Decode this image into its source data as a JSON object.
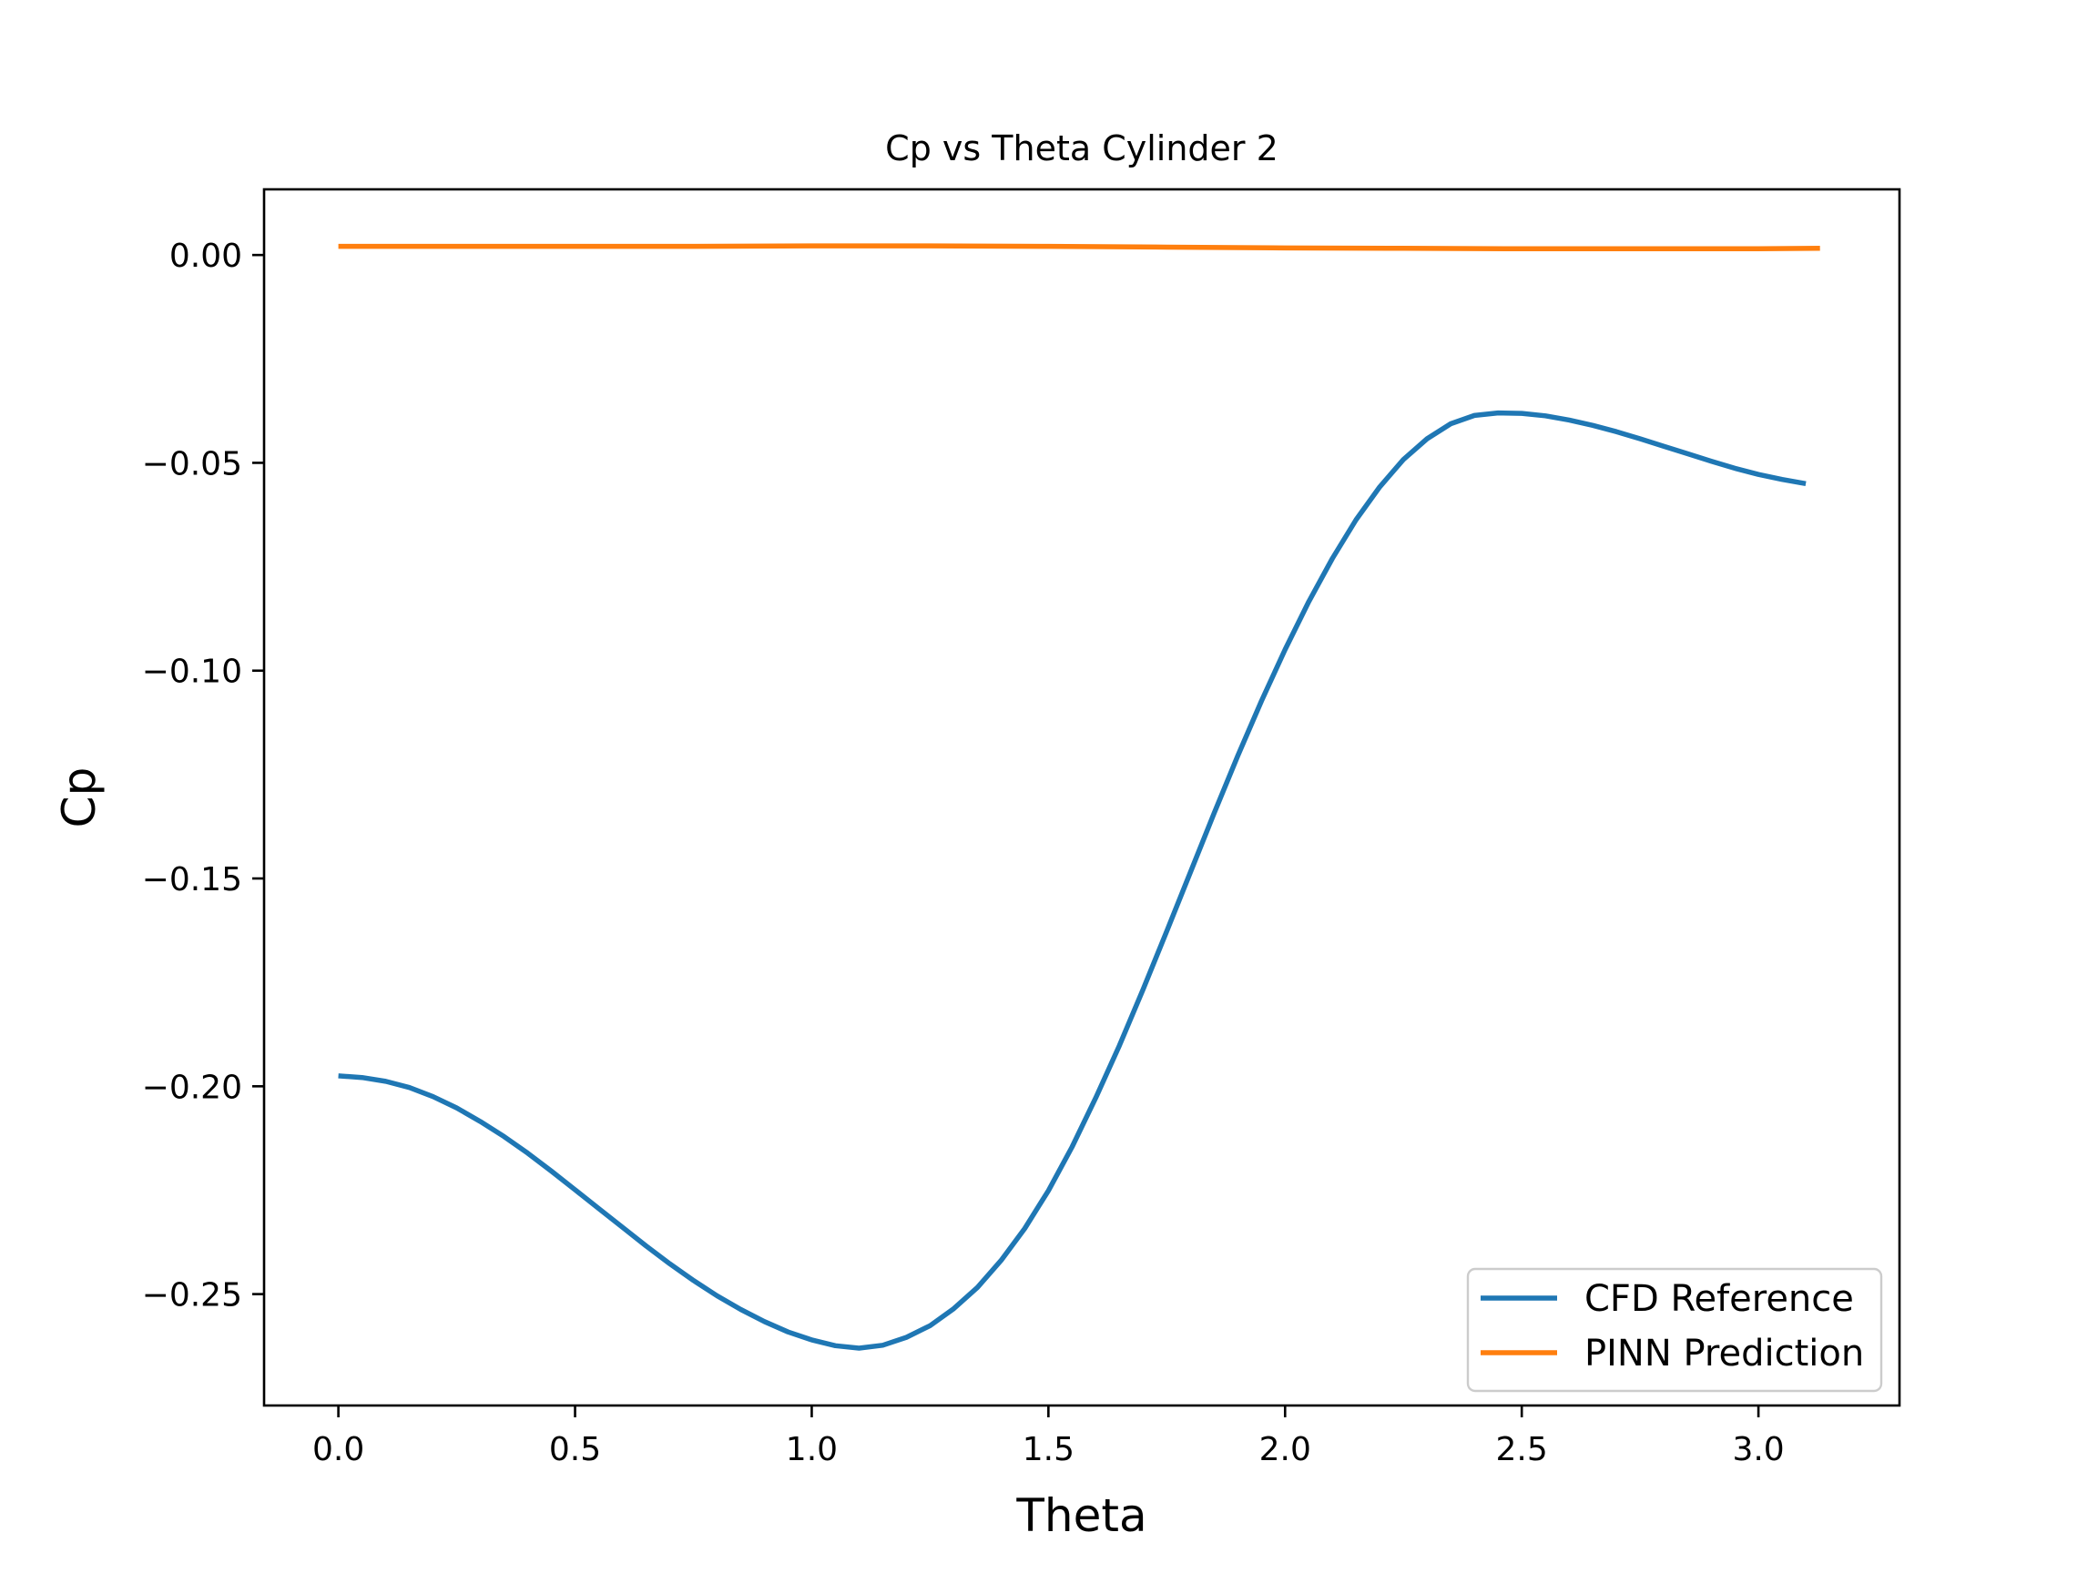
{
  "chart_data": {
    "type": "line",
    "title": "Cp vs Theta Cylinder 2",
    "xlabel": "Theta",
    "ylabel": "Cp",
    "xlim": [
      -0.157,
      3.298
    ],
    "ylim": [
      -0.2768,
      0.0158
    ],
    "xticks": [
      0.0,
      0.5,
      1.0,
      1.5,
      2.0,
      2.5,
      3.0
    ],
    "xtick_labels": [
      "0.0",
      "0.5",
      "1.0",
      "1.5",
      "2.0",
      "2.5",
      "3.0"
    ],
    "yticks": [
      0.0,
      -0.05,
      -0.1,
      -0.15,
      -0.2,
      -0.25
    ],
    "ytick_labels": [
      "0.00",
      "−0.05",
      "−0.10",
      "−0.15",
      "−0.20",
      "−0.25"
    ],
    "grid": false,
    "legend_position": "bottom-right",
    "series": [
      {
        "name": "CFD Reference",
        "color": "#1f77b4",
        "x": [
          0.0,
          0.05,
          0.1,
          0.15,
          0.2,
          0.25,
          0.3,
          0.35,
          0.4,
          0.45,
          0.5,
          0.55,
          0.6,
          0.65,
          0.7,
          0.75,
          0.8,
          0.85,
          0.9,
          0.95,
          1.0,
          1.05,
          1.1,
          1.15,
          1.2,
          1.25,
          1.3,
          1.35,
          1.4,
          1.45,
          1.5,
          1.55,
          1.6,
          1.65,
          1.7,
          1.75,
          1.8,
          1.85,
          1.9,
          1.95,
          2.0,
          2.05,
          2.1,
          2.15,
          2.2,
          2.25,
          2.3,
          2.35,
          2.4,
          2.45,
          2.5,
          2.55,
          2.6,
          2.65,
          2.7,
          2.75,
          2.8,
          2.85,
          2.9,
          2.95,
          3.0,
          3.05,
          3.1
        ],
        "y": [
          -0.1975,
          -0.1979,
          -0.1988,
          -0.2003,
          -0.2025,
          -0.2052,
          -0.2085,
          -0.2121,
          -0.2161,
          -0.2204,
          -0.2249,
          -0.2294,
          -0.2339,
          -0.2384,
          -0.2427,
          -0.2467,
          -0.2504,
          -0.2537,
          -0.2566,
          -0.2591,
          -0.261,
          -0.2624,
          -0.263,
          -0.2623,
          -0.2604,
          -0.2576,
          -0.2535,
          -0.2484,
          -0.2419,
          -0.2342,
          -0.2251,
          -0.2146,
          -0.2028,
          -0.1902,
          -0.1767,
          -0.1627,
          -0.1485,
          -0.1343,
          -0.1205,
          -0.1073,
          -0.0949,
          -0.0834,
          -0.073,
          -0.0637,
          -0.0558,
          -0.0492,
          -0.0442,
          -0.0406,
          -0.0386,
          -0.038,
          -0.0381,
          -0.0387,
          -0.0397,
          -0.041,
          -0.0425,
          -0.0442,
          -0.046,
          -0.0478,
          -0.0496,
          -0.0513,
          -0.0528,
          -0.054,
          -0.055
        ]
      },
      {
        "name": "PINN Prediction",
        "color": "#ff7f0e",
        "x": [
          0.0,
          0.25,
          0.5,
          0.75,
          1.0,
          1.25,
          1.5,
          1.75,
          2.0,
          2.25,
          2.5,
          2.75,
          3.0,
          3.13
        ],
        "y": [
          0.0021,
          0.0021,
          0.0021,
          0.0021,
          0.0022,
          0.0022,
          0.0021,
          0.0019,
          0.0017,
          0.0016,
          0.0015,
          0.0015,
          0.0015,
          0.0016
        ]
      }
    ]
  }
}
